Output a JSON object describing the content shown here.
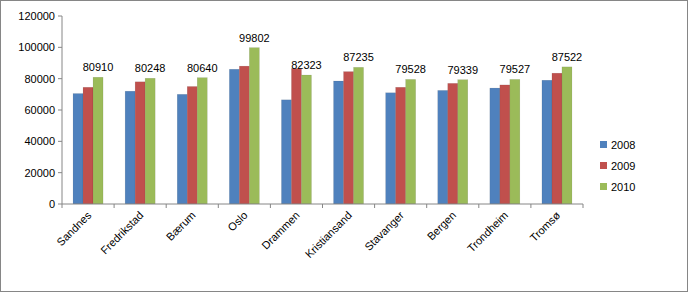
{
  "chart_data": {
    "type": "bar",
    "categories": [
      "Sandnes",
      "Fredrikstad",
      "Bærum",
      "Oslo",
      "Drammen",
      "Kristiansand",
      "Stavanger",
      "Bergen",
      "Trondheim",
      "Tromsø"
    ],
    "series": [
      {
        "name": "2008",
        "color": "#4f81bd",
        "values": [
          70500,
          72000,
          70000,
          86000,
          66500,
          78500,
          71000,
          72500,
          74000,
          79000
        ]
      },
      {
        "name": "2009",
        "color": "#c0504d",
        "values": [
          74500,
          78000,
          75000,
          88000,
          86500,
          84500,
          74500,
          77000,
          76000,
          83500
        ]
      },
      {
        "name": "2010",
        "color": "#9bbb59",
        "values": [
          80910,
          80248,
          80640,
          99802,
          82323,
          87235,
          79528,
          79339,
          79527,
          87522
        ],
        "data_labels": true
      }
    ],
    "ylim": [
      0,
      120000
    ],
    "yticks": [
      0,
      20000,
      40000,
      60000,
      80000,
      100000,
      120000
    ],
    "grid": false,
    "legend": "right"
  }
}
